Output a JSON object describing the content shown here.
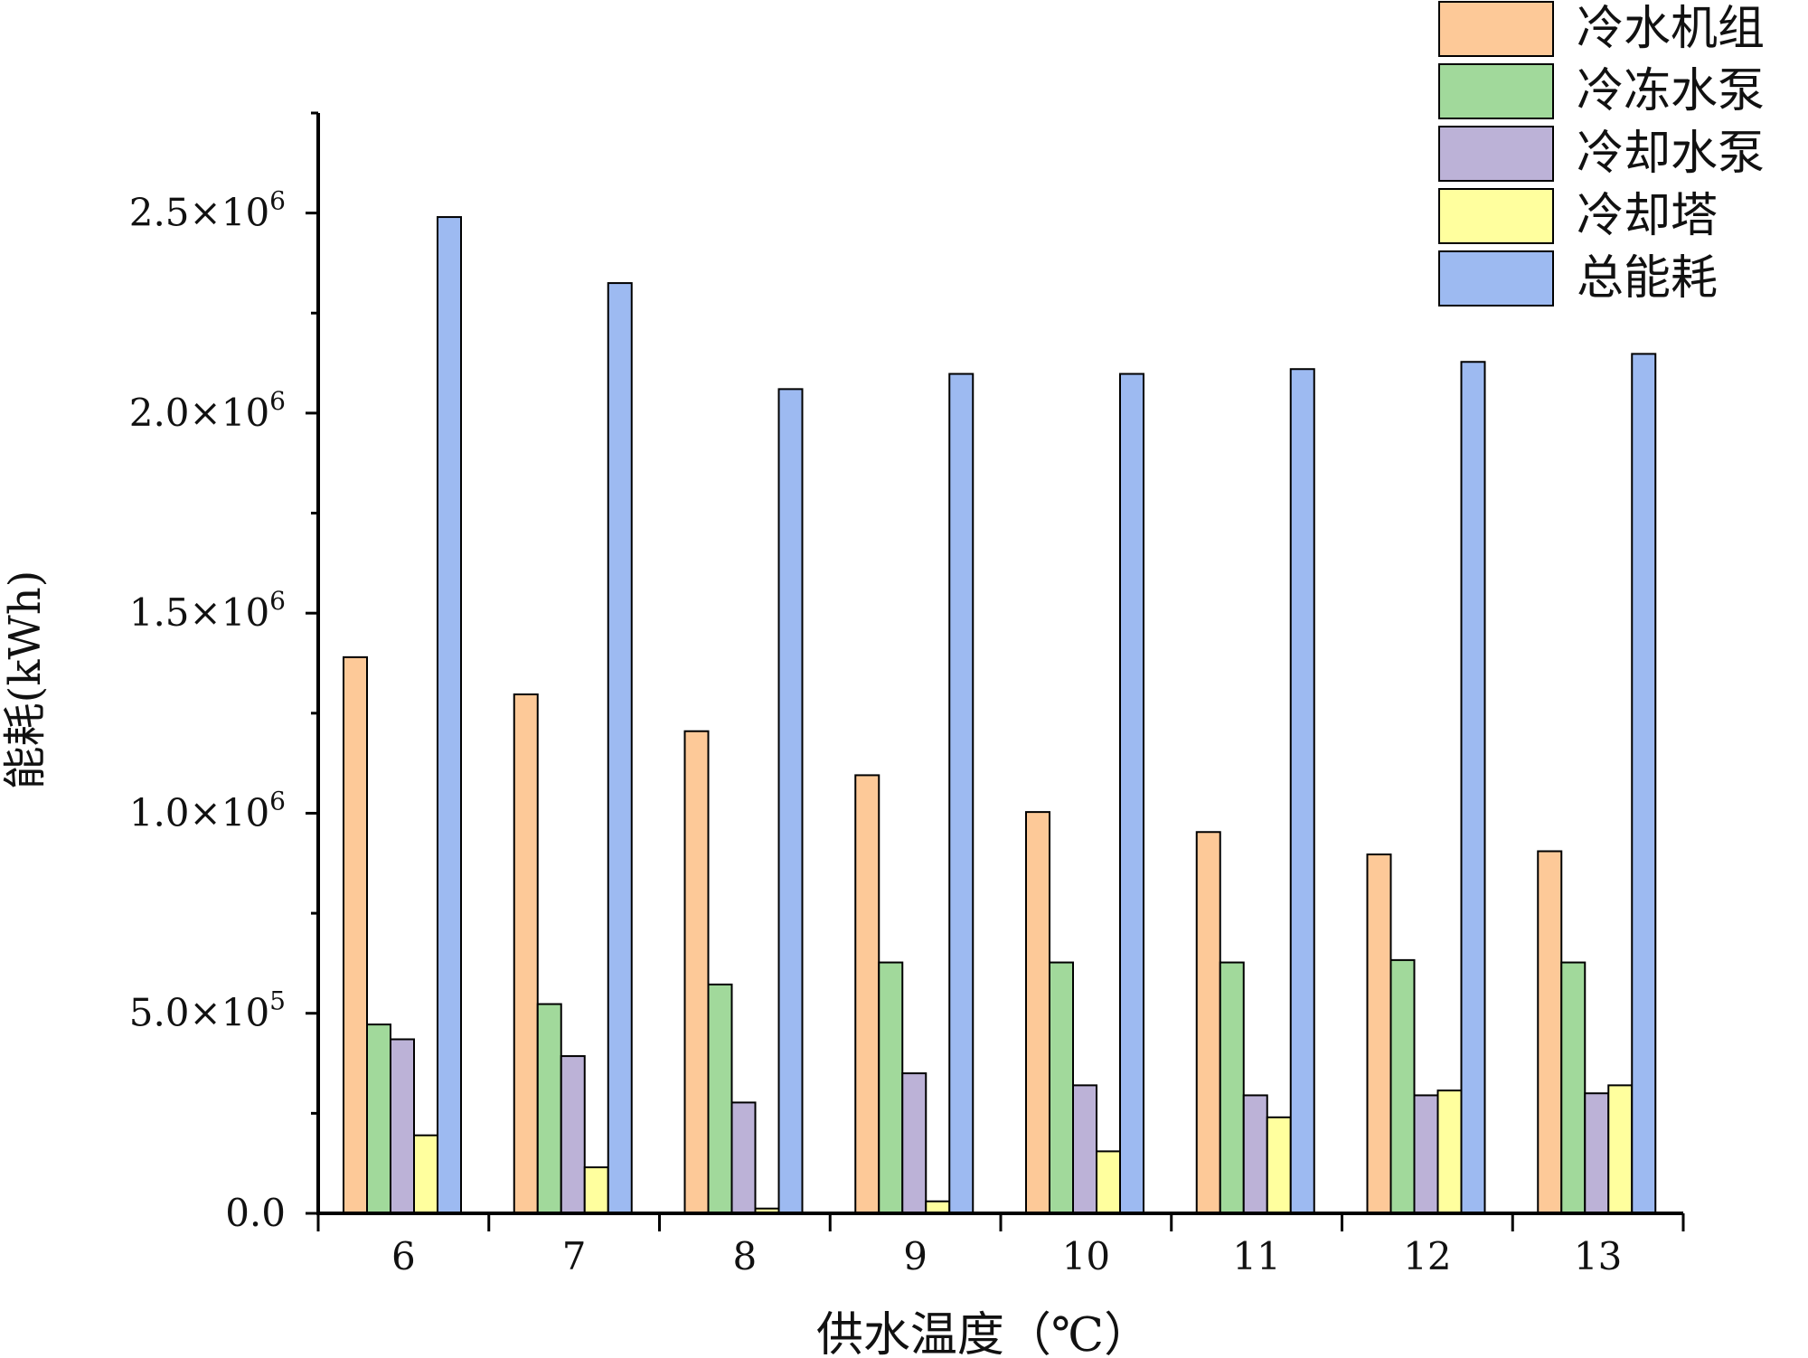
{
  "chart_data": {
    "type": "bar",
    "xlabel": "供水温度（℃）",
    "ylabel": "能耗(kWh)",
    "categories": [
      "6",
      "7",
      "8",
      "9",
      "10",
      "11",
      "12",
      "13"
    ],
    "ylim": [
      0,
      2750000
    ],
    "yticks": [
      {
        "value": 0,
        "mantissa": "0.0",
        "exp": ""
      },
      {
        "value": 500000,
        "mantissa": "5.0",
        "exp": "5"
      },
      {
        "value": 1000000,
        "mantissa": "1.0",
        "exp": "6"
      },
      {
        "value": 1500000,
        "mantissa": "1.5",
        "exp": "6"
      },
      {
        "value": 2000000,
        "mantissa": "2.0",
        "exp": "6"
      },
      {
        "value": 2500000,
        "mantissa": "2.5",
        "exp": "6"
      }
    ],
    "legend_position": "top-right",
    "grid": false,
    "series": [
      {
        "name": "冷水机组",
        "color": "#FDC998",
        "values": [
          1390000,
          1297000,
          1205000,
          1095000,
          1003000,
          953000,
          897000,
          905000
        ]
      },
      {
        "name": "冷冻水泵",
        "color": "#A1D99B",
        "values": [
          472000,
          523000,
          572000,
          627000,
          627000,
          627000,
          633000,
          627000
        ]
      },
      {
        "name": "冷却水泵",
        "color": "#BCB2D7",
        "values": [
          435000,
          393000,
          277000,
          350000,
          320000,
          295000,
          295000,
          300000
        ]
      },
      {
        "name": "冷却塔",
        "color": "#FFFF9E",
        "values": [
          195000,
          115000,
          12000,
          30000,
          155000,
          240000,
          307000,
          320000
        ]
      },
      {
        "name": "总能耗",
        "color": "#9DBAF1",
        "values": [
          2490000,
          2325000,
          2060000,
          2098000,
          2098000,
          2110000,
          2128000,
          2148000
        ]
      }
    ]
  }
}
